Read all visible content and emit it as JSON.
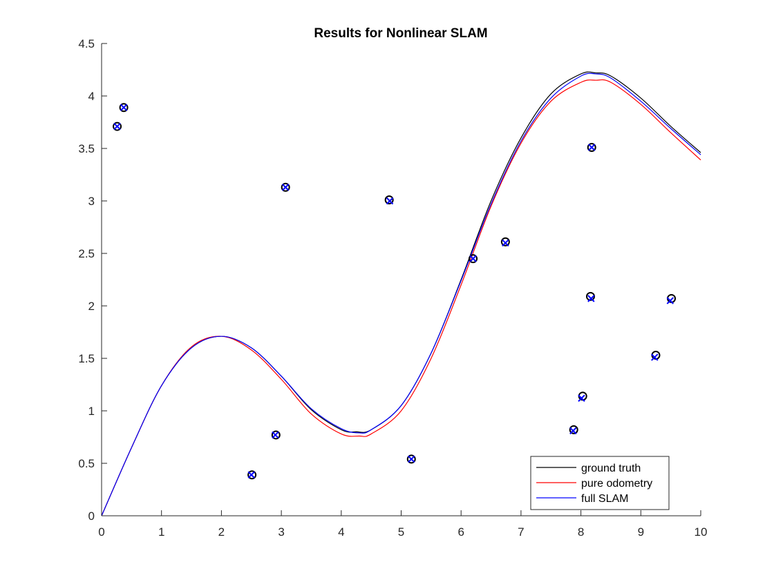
{
  "chart_data": {
    "type": "line",
    "title": "Results for Nonlinear SLAM",
    "xlabel": "",
    "ylabel": "",
    "xlim": [
      0,
      10
    ],
    "ylim": [
      0,
      4.5
    ],
    "xticks": [
      "0",
      "1",
      "2",
      "3",
      "4",
      "5",
      "6",
      "7",
      "8",
      "9",
      "10"
    ],
    "yticks": [
      "0",
      "0.5",
      "1",
      "1.5",
      "2",
      "2.5",
      "3",
      "3.5",
      "4",
      "4.5"
    ],
    "grid": false,
    "legend_position": "bottom-right",
    "series": [
      {
        "name": "ground truth",
        "color": "#000000",
        "x": [
          0,
          0.5,
          1,
          1.5,
          2,
          2.5,
          3,
          3.5,
          4,
          4.25,
          4.5,
          5,
          5.5,
          6,
          6.5,
          7,
          7.5,
          8,
          8.25,
          8.5,
          9,
          9.5,
          10
        ],
        "y": [
          0,
          0.65,
          1.24,
          1.6,
          1.71,
          1.6,
          1.33,
          1.01,
          0.82,
          0.8,
          0.82,
          1.05,
          1.55,
          2.25,
          3.0,
          3.6,
          4.02,
          4.21,
          4.22,
          4.19,
          3.98,
          3.71,
          3.46
        ]
      },
      {
        "name": "pure odometry",
        "color": "#ff0000",
        "x": [
          0,
          0.5,
          1,
          1.5,
          2,
          2.5,
          3,
          3.5,
          4,
          4.3,
          4.5,
          5,
          5.5,
          6,
          6.5,
          7,
          7.5,
          8,
          8.25,
          8.5,
          9,
          9.5,
          10
        ],
        "y": [
          0,
          0.65,
          1.24,
          1.61,
          1.71,
          1.58,
          1.3,
          0.97,
          0.78,
          0.76,
          0.78,
          1.0,
          1.5,
          2.2,
          2.95,
          3.55,
          3.95,
          4.13,
          4.15,
          4.13,
          3.92,
          3.65,
          3.39
        ]
      },
      {
        "name": "full SLAM",
        "color": "#0000ff",
        "x": [
          0,
          0.5,
          1,
          1.5,
          2,
          2.5,
          3,
          3.5,
          4,
          4.3,
          4.5,
          5,
          5.5,
          6,
          6.5,
          7,
          7.5,
          8,
          8.25,
          8.5,
          9,
          9.5,
          10
        ],
        "y": [
          0,
          0.65,
          1.24,
          1.6,
          1.71,
          1.6,
          1.33,
          1.02,
          0.83,
          0.79,
          0.82,
          1.05,
          1.55,
          2.24,
          2.97,
          3.57,
          3.98,
          4.19,
          4.21,
          4.17,
          3.95,
          3.69,
          3.44
        ]
      }
    ],
    "landmarks": {
      "true_marker": "o",
      "true_color": "#000000",
      "estimate_marker": "x",
      "estimate_color": "#0000ff",
      "true_points": [
        [
          0.26,
          3.71
        ],
        [
          0.37,
          3.89
        ],
        [
          3.07,
          3.13
        ],
        [
          4.8,
          3.01
        ],
        [
          8.18,
          3.51
        ],
        [
          6.2,
          2.45
        ],
        [
          6.74,
          2.61
        ],
        [
          8.16,
          2.09
        ],
        [
          9.51,
          2.07
        ],
        [
          9.25,
          1.53
        ],
        [
          8.03,
          1.14
        ],
        [
          7.88,
          0.82
        ],
        [
          2.51,
          0.39
        ],
        [
          2.91,
          0.77
        ],
        [
          5.17,
          0.54
        ]
      ],
      "estimate_points": [
        [
          0.26,
          3.71
        ],
        [
          0.37,
          3.89
        ],
        [
          3.07,
          3.13
        ],
        [
          4.81,
          3.0
        ],
        [
          8.18,
          3.51
        ],
        [
          6.2,
          2.45
        ],
        [
          6.74,
          2.6
        ],
        [
          8.17,
          2.07
        ],
        [
          9.49,
          2.05
        ],
        [
          9.23,
          1.51
        ],
        [
          8.01,
          1.12
        ],
        [
          7.87,
          0.81
        ],
        [
          2.5,
          0.39
        ],
        [
          2.9,
          0.77
        ],
        [
          5.17,
          0.54
        ]
      ]
    }
  }
}
